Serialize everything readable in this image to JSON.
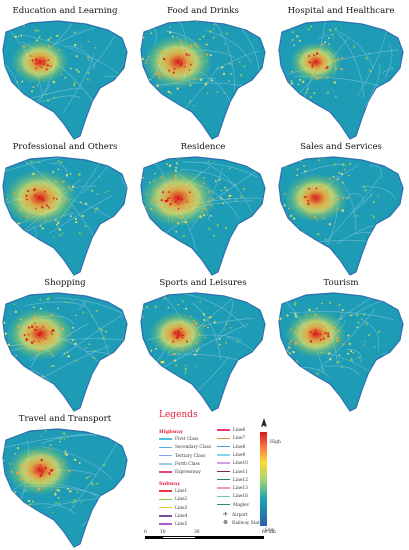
{
  "panels": [
    {
      "title": "Education and Learning",
      "intensity": 0.45
    },
    {
      "title": "Food and Drinks",
      "intensity": 0.75
    },
    {
      "title": "Hospital and Healthcare",
      "intensity": 0.3
    },
    {
      "title": "Professional and Others",
      "intensity": 0.85
    },
    {
      "title": "Residence",
      "intensity": 0.9
    },
    {
      "title": "Sales and Services",
      "intensity": 0.6
    },
    {
      "title": "Shopping",
      "intensity": 0.7
    },
    {
      "title": "Sports and Leisures",
      "intensity": 0.45
    },
    {
      "title": "Tourism",
      "intensity": 0.55
    },
    {
      "title": "Travel and Transport",
      "intensity": 0.65
    }
  ],
  "legend": {
    "title": "Legends",
    "highway_heading": "Highway",
    "highway": [
      {
        "label": "First Class",
        "color": "#4cc3d9"
      },
      {
        "label": "Secondary Class",
        "color": "#5ab0e6"
      },
      {
        "label": "Tertiary Class",
        "color": "#7aa6e8"
      },
      {
        "label": "Forth Class",
        "color": "#9fc9f0"
      },
      {
        "label": "Expressway",
        "color": "#e8457a"
      }
    ],
    "subway_heading": "Subway",
    "subway_left": [
      {
        "label": "Line1",
        "color": "#e8323c"
      },
      {
        "label": "Line2",
        "color": "#8bc34a"
      },
      {
        "label": "Line3",
        "color": "#f2c230"
      },
      {
        "label": "Line4",
        "color": "#7b4ea8"
      },
      {
        "label": "Line5",
        "color": "#b05ac9"
      }
    ],
    "subway_right": [
      {
        "label": "Line6",
        "color": "#e3397a"
      },
      {
        "label": "Line7",
        "color": "#f28c28"
      },
      {
        "label": "Line8",
        "color": "#3fa0e0"
      },
      {
        "label": "Line9",
        "color": "#8ad0f0"
      },
      {
        "label": "Line10",
        "color": "#c8a2d8"
      },
      {
        "label": "Line11",
        "color": "#8a2b2b"
      },
      {
        "label": "Line12",
        "color": "#1d8a5a"
      },
      {
        "label": "Line13",
        "color": "#e39ac8"
      },
      {
        "label": "Line16",
        "color": "#66ccbb"
      },
      {
        "label": "Maglev",
        "color": "#2e8b57"
      }
    ],
    "symbols": [
      {
        "label": "Airport",
        "icon": "airplane-icon",
        "glyph": "✈"
      },
      {
        "label": "Railway Station",
        "icon": "railway-station-icon",
        "glyph": "⊛"
      }
    ],
    "colorbar": {
      "high_label": "High",
      "low_label": "Low",
      "colors": [
        "#d7191c",
        "#fdd835",
        "#a6d96a",
        "#1aa0b4",
        "#2c5fa8"
      ]
    },
    "north_label": "N",
    "scale": {
      "ticks": [
        "0",
        "10",
        "30",
        "60"
      ],
      "unit": "km"
    }
  },
  "colors": {
    "land": "#1e9bb5",
    "land_edge": "#2e6fae",
    "road": "#7fc6de",
    "hot": "#d7191c",
    "warm": "#f2a93b",
    "mid": "#f5e65a",
    "cool": "#8fcf5a"
  }
}
